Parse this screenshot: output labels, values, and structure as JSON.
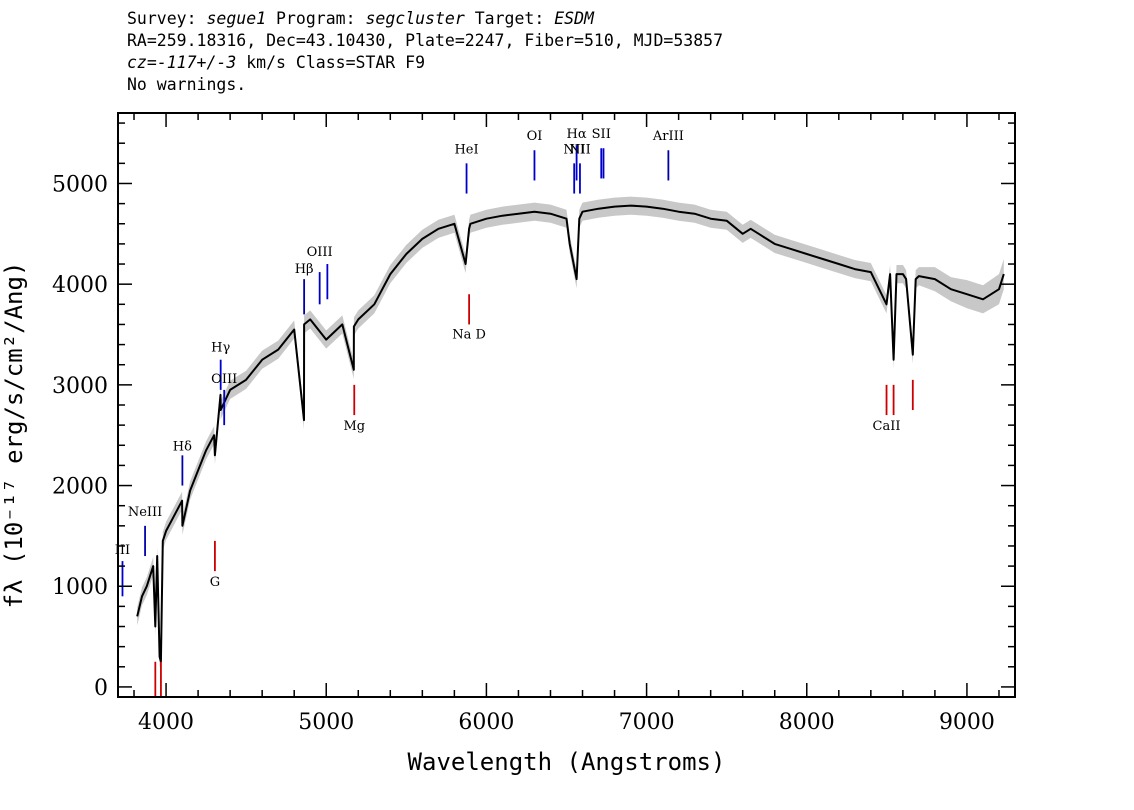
{
  "header": {
    "survey_key": "Survey:",
    "survey": "segue1",
    "program_key": "Program:",
    "program": "segcluster",
    "target_key": "Target:",
    "target": "ESDM",
    "line2": "RA=259.18316, Dec=43.10430, Plate=2247, Fiber=510, MJD=53857",
    "cz_key": "cz=",
    "cz": "-117+/-3",
    "cz_unit_class": "km/s Class=STAR F9",
    "warnings": "No warnings."
  },
  "chart_data": {
    "type": "line",
    "xlabel": "Wavelength (Angstroms)",
    "ylabel": "fλ (10⁻¹⁷ erg/s/cm²/Ang)",
    "xlim": [
      3700,
      9300
    ],
    "ylim": [
      -100,
      5700
    ],
    "x_ticks": [
      4000,
      5000,
      6000,
      7000,
      8000,
      9000
    ],
    "y_ticks": [
      0,
      1000,
      2000,
      3000,
      4000,
      5000
    ],
    "x_tick_labels": [
      "4000",
      "5000",
      "6000",
      "7000",
      "8000",
      "9000"
    ],
    "y_tick_labels": [
      "0",
      "1000",
      "2000",
      "3000",
      "4000",
      "5000"
    ],
    "grid": false,
    "series": [
      {
        "style": "black line with grey error band",
        "color": "#000000",
        "band_color": "#c8c8c8",
        "x": [
          3820,
          3850,
          3880,
          3900,
          3920,
          3933,
          3945,
          3960,
          3968,
          3980,
          4000,
          4050,
          4100,
          4102,
          4150,
          4200,
          4250,
          4300,
          4305,
          4340,
          4341,
          4400,
          4500,
          4600,
          4700,
          4800,
          4861,
          4862,
          4900,
          5000,
          5100,
          5172,
          5173,
          5200,
          5300,
          5400,
          5500,
          5600,
          5700,
          5800,
          5870,
          5892,
          5900,
          6000,
          6100,
          6200,
          6300,
          6400,
          6500,
          6520,
          6563,
          6580,
          6600,
          6700,
          6800,
          6900,
          7000,
          7100,
          7200,
          7300,
          7400,
          7500,
          7600,
          7650,
          7700,
          7800,
          7900,
          8000,
          8100,
          8200,
          8300,
          8400,
          8498,
          8520,
          8542,
          8560,
          8600,
          8620,
          8662,
          8680,
          8700,
          8800,
          8900,
          9000,
          9100,
          9200,
          9230
        ],
        "y": [
          700,
          900,
          1000,
          1100,
          1200,
          600,
          1300,
          300,
          250,
          1450,
          1550,
          1700,
          1850,
          1600,
          1950,
          2150,
          2350,
          2500,
          2300,
          2900,
          2750,
          2950,
          3050,
          3250,
          3350,
          3550,
          2650,
          3600,
          3650,
          3450,
          3600,
          3150,
          3580,
          3650,
          3800,
          4100,
          4300,
          4450,
          4550,
          4600,
          4200,
          4550,
          4600,
          4650,
          4680,
          4700,
          4720,
          4700,
          4650,
          4400,
          4050,
          4650,
          4720,
          4750,
          4770,
          4780,
          4770,
          4750,
          4720,
          4700,
          4650,
          4630,
          4500,
          4550,
          4500,
          4400,
          4350,
          4300,
          4250,
          4200,
          4150,
          4120,
          3800,
          4100,
          3250,
          4100,
          4100,
          4050,
          3300,
          4050,
          4080,
          4050,
          3950,
          3900,
          3850,
          3950,
          4100
        ],
        "band": [
          90,
          90,
          90,
          90,
          90,
          90,
          90,
          90,
          90,
          90,
          90,
          90,
          90,
          90,
          90,
          90,
          90,
          90,
          90,
          90,
          90,
          90,
          90,
          90,
          90,
          90,
          90,
          90,
          90,
          90,
          90,
          90,
          90,
          90,
          90,
          90,
          90,
          90,
          90,
          90,
          90,
          90,
          90,
          90,
          90,
          90,
          90,
          90,
          90,
          90,
          90,
          90,
          90,
          90,
          90,
          90,
          90,
          90,
          90,
          90,
          90,
          90,
          90,
          90,
          90,
          90,
          90,
          90,
          90,
          90,
          90,
          90,
          90,
          90,
          90,
          90,
          90,
          90,
          90,
          90,
          90,
          120,
          120,
          140,
          140,
          150,
          150
        ]
      }
    ],
    "line_markers": [
      {
        "label": "NeIII",
        "x": 3869,
        "y1": 1300,
        "y2": 1600,
        "color": "#0000aa",
        "text_y": 1700
      },
      {
        "label": "III",
        "x": 3728,
        "y1": 900,
        "y2": 1250,
        "color": "#0000cc",
        "text_y": 1320
      },
      {
        "label": "Hδ",
        "x": 4102,
        "y1": 2000,
        "y2": 2300,
        "color": "#0000aa",
        "text_y": 2350
      },
      {
        "label": "Hγ",
        "x": 4341,
        "y1": 2950,
        "y2": 3250,
        "color": "#0000cc",
        "text_y": 3330
      },
      {
        "label": "OIII",
        "x": 4363,
        "y1": 2600,
        "y2": 2950,
        "color": "#0000cc",
        "text_y": 3020
      },
      {
        "label": "Hβ",
        "x": 4862,
        "y1": 3700,
        "y2": 4050,
        "color": "#0000aa",
        "text_y": 4110
      },
      {
        "label": "OIII",
        "x": 4959,
        "y1": 3800,
        "y2": 4120,
        "color": "#0000cc",
        "text_y": 4280
      },
      {
        "label": "",
        "x": 5007,
        "y1": 3850,
        "y2": 4200,
        "color": "#0000cc",
        "text_y": 0
      },
      {
        "label": "HeI",
        "x": 5876,
        "y1": 4900,
        "y2": 5200,
        "color": "#0000cc",
        "text_y": 5300
      },
      {
        "label": "OI",
        "x": 6300,
        "y1": 5030,
        "y2": 5330,
        "color": "#0000cc",
        "text_y": 5430
      },
      {
        "label": "NII",
        "x": 6548,
        "y1": 4900,
        "y2": 5200,
        "color": "#0000cc",
        "text_y": 5300
      },
      {
        "label": "Hα",
        "x": 6563,
        "y1": 5030,
        "y2": 5380,
        "color": "#0000cc",
        "text_y": 5450
      },
      {
        "label": "NII",
        "x": 6584,
        "y1": 4900,
        "y2": 5200,
        "color": "#0000cc",
        "text_y": 5300
      },
      {
        "label": "SII",
        "x": 6717,
        "y1": 5050,
        "y2": 5350,
        "color": "#0000cc",
        "text_y": 5450
      },
      {
        "label": "",
        "x": 6731,
        "y1": 5050,
        "y2": 5350,
        "color": "#0000cc",
        "text_y": 0
      },
      {
        "label": "ArIII",
        "x": 7136,
        "y1": 5030,
        "y2": 5330,
        "color": "#0000aa",
        "text_y": 5430
      },
      {
        "label": "Na  D",
        "x": 5892,
        "y1": 3600,
        "y2": 3900,
        "color": "#cc0000",
        "text_y": 3460
      },
      {
        "label": "Mg",
        "x": 5175,
        "y1": 2700,
        "y2": 3000,
        "color": "#cc0000",
        "text_y": 2550
      },
      {
        "label": "G",
        "x": 4305,
        "y1": 1150,
        "y2": 1450,
        "color": "#cc0000",
        "text_y": 1000
      },
      {
        "label": "",
        "x": 3933,
        "y1": -100,
        "y2": 250,
        "color": "#cc0000",
        "text_y": 0
      },
      {
        "label": "",
        "x": 3968,
        "y1": -100,
        "y2": 250,
        "color": "#cc0000",
        "text_y": 0
      },
      {
        "label": "CaII",
        "x": 8498,
        "y1": 2700,
        "y2": 3000,
        "color": "#cc0000",
        "text_y": 2550
      },
      {
        "label": "",
        "x": 8542,
        "y1": 2700,
        "y2": 3000,
        "color": "#cc0000",
        "text_y": 0
      },
      {
        "label": "",
        "x": 8662,
        "y1": 2750,
        "y2": 3050,
        "color": "#cc0000",
        "text_y": 0
      }
    ]
  }
}
